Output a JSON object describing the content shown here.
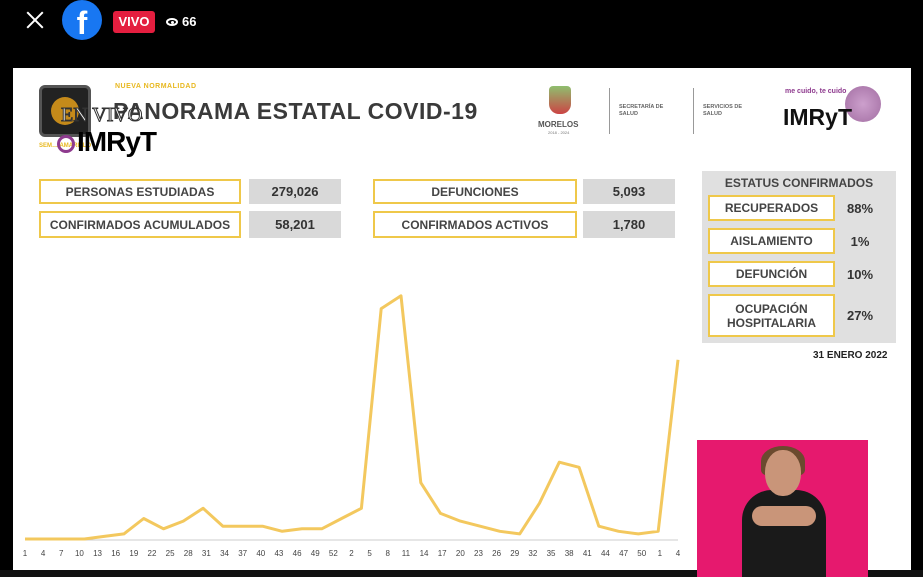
{
  "facebook": {
    "live_label": "VIVO",
    "viewers": "66",
    "logo_letter": "f"
  },
  "slide": {
    "nueva_normalidad": "NUEVA NORMALIDAD",
    "semaforo": "SEM… AMARILLO",
    "title": "PANORAMA ESTATAL COVID-19",
    "overlay_envivo": "EN VIVO",
    "overlay_imryt": "IMRyT",
    "morelos": "MORELOS",
    "morelos_years": "2018 - 2024",
    "secretaria": "SECRETARÍA DE SALUD",
    "servicios": "SERVICIOS DE SALUD",
    "mecuido": "me cuido, te cuido",
    "imryt_logo": "IMRyT",
    "stats": [
      {
        "label": "PERSONAS ESTUDIADAS",
        "value": "279,026"
      },
      {
        "label": "CONFIRMADOS ACUMULADOS",
        "value": "58,201"
      },
      {
        "label": "DEFUNCIONES",
        "value": "5,093"
      },
      {
        "label": "CONFIRMADOS ACTIVOS",
        "value": "1,780"
      }
    ],
    "status": {
      "title": "ESTATUS CONFIRMADOS",
      "items": [
        {
          "label": "RECUPERADOS",
          "pct": "88%"
        },
        {
          "label": "AISLAMIENTO",
          "pct": "1%"
        },
        {
          "label": "DEFUNCIÓN",
          "pct": "10%"
        },
        {
          "label": "OCUPACIÓN HOSPITALARIA",
          "pct": "27%"
        }
      ]
    },
    "date": "31 ENERO 2022"
  },
  "chart_data": {
    "type": "line",
    "title": "",
    "xlabel": "",
    "ylabel": "",
    "color": "#f3c85e",
    "grid": false,
    "x_ticks": [
      "1",
      "4",
      "7",
      "10",
      "13",
      "16",
      "19",
      "22",
      "25",
      "28",
      "31",
      "34",
      "37",
      "40",
      "43",
      "46",
      "49",
      "52",
      "2",
      "5",
      "8",
      "11",
      "14",
      "17",
      "20",
      "23",
      "26",
      "29",
      "32",
      "35",
      "38",
      "41",
      "44",
      "47",
      "50",
      "1",
      "4"
    ],
    "values": [
      0,
      0,
      0,
      0,
      1,
      2,
      8,
      4,
      7,
      12,
      5,
      5,
      5,
      3,
      4,
      4,
      8,
      12,
      90,
      95,
      22,
      10,
      7,
      5,
      3,
      2,
      14,
      30,
      28,
      5,
      3,
      2,
      3,
      70
    ],
    "ylim": [
      0,
      100
    ]
  }
}
